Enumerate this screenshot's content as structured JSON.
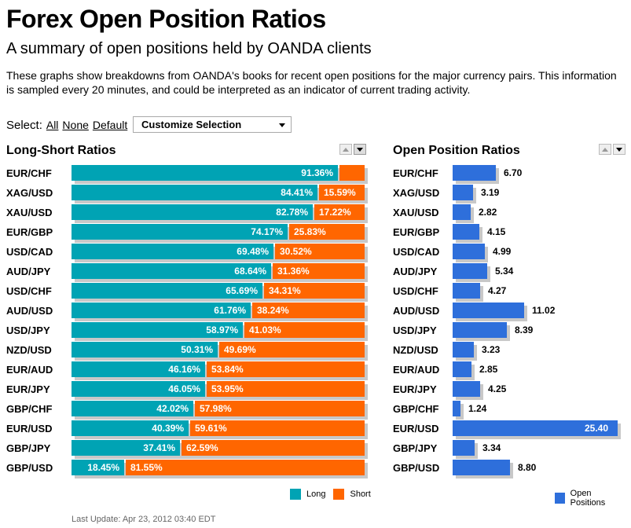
{
  "page": {
    "title": "Forex Open Position Ratios",
    "subtitle": "A summary of open positions held by OANDA clients",
    "description": "These graphs show breakdowns from OANDA's books for recent open positions for the major currency pairs. This information is sampled every 20 minutes, and could be interpreted as an indicator of current trading activity.",
    "footer": "Last Update: Apr 23, 2012 03:40 EDT"
  },
  "select": {
    "label": "Select:",
    "all": "All",
    "none": "None",
    "default": "Default",
    "dropdown": "Customize Selection"
  },
  "colors": {
    "long": "#00a3b4",
    "short": "#ff6600",
    "open": "#2e6fdb",
    "shadow": "#c8c8c8"
  },
  "chart_data": [
    {
      "type": "bar",
      "title": "Long-Short Ratios",
      "orientation": "horizontal",
      "stacked": true,
      "categories": [
        "EUR/CHF",
        "XAG/USD",
        "XAU/USD",
        "EUR/GBP",
        "USD/CAD",
        "AUD/JPY",
        "USD/CHF",
        "AUD/USD",
        "USD/JPY",
        "NZD/USD",
        "EUR/AUD",
        "EUR/JPY",
        "GBP/CHF",
        "EUR/USD",
        "GBP/JPY",
        "GBP/USD"
      ],
      "series": [
        {
          "name": "Long",
          "values": [
            91.36,
            84.41,
            82.78,
            74.17,
            69.48,
            68.64,
            65.69,
            61.76,
            58.97,
            50.31,
            46.16,
            46.05,
            42.02,
            40.39,
            37.41,
            18.45
          ]
        },
        {
          "name": "Short",
          "values": [
            8.64,
            15.59,
            17.22,
            25.83,
            30.52,
            31.36,
            34.31,
            38.24,
            41.03,
            49.69,
            53.84,
            53.95,
            57.98,
            59.61,
            62.59,
            81.55
          ]
        }
      ],
      "labels": {
        "long": [
          "91.36%",
          "84.41%",
          "82.78%",
          "74.17%",
          "69.48%",
          "68.64%",
          "65.69%",
          "61.76%",
          "58.97%",
          "50.31%",
          "46.16%",
          "46.05%",
          "42.02%",
          "40.39%",
          "37.41%",
          "18.45%"
        ],
        "short": [
          "",
          "15.59%",
          "17.22%",
          "25.83%",
          "30.52%",
          "31.36%",
          "34.31%",
          "38.24%",
          "41.03%",
          "49.69%",
          "53.84%",
          "53.95%",
          "57.98%",
          "59.61%",
          "62.59%",
          "81.55%"
        ]
      },
      "xlim": [
        0,
        100
      ],
      "legend_position": "bottom-right",
      "legend": [
        "Long",
        "Short"
      ]
    },
    {
      "type": "bar",
      "title": "Open Position Ratios",
      "orientation": "horizontal",
      "categories": [
        "EUR/CHF",
        "XAG/USD",
        "XAU/USD",
        "EUR/GBP",
        "USD/CAD",
        "AUD/JPY",
        "USD/CHF",
        "AUD/USD",
        "USD/JPY",
        "NZD/USD",
        "EUR/AUD",
        "EUR/JPY",
        "GBP/CHF",
        "EUR/USD",
        "GBP/JPY",
        "GBP/USD"
      ],
      "series": [
        {
          "name": "Open Positions",
          "values": [
            6.7,
            3.19,
            2.82,
            4.15,
            4.99,
            5.34,
            4.27,
            11.02,
            8.39,
            3.23,
            2.85,
            4.25,
            1.24,
            25.4,
            3.34,
            8.8
          ]
        }
      ],
      "labels": [
        "6.70",
        "3.19",
        "2.82",
        "4.15",
        "4.99",
        "5.34",
        "4.27",
        "11.02",
        "8.39",
        "3.23",
        "2.85",
        "4.25",
        "1.24",
        "25.40",
        "3.34",
        "8.80"
      ],
      "xlim": [
        0,
        25.4
      ],
      "legend_position": "bottom-right",
      "legend": [
        "Open Positions"
      ]
    }
  ]
}
